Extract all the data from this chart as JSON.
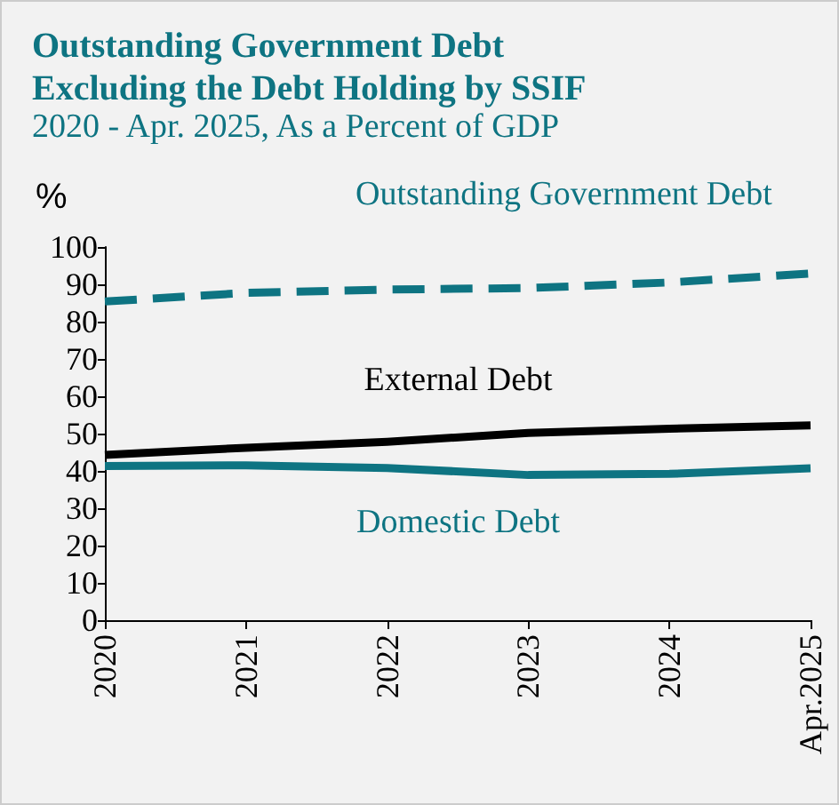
{
  "chart_data": {
    "type": "line",
    "title": "Outstanding Government Debt\nExcluding the Debt Holding by SSIF",
    "subtitle": "2020 - Apr. 2025, As a Percent of GDP",
    "ylabel": "%",
    "categories": [
      "2020",
      "2021",
      "2022",
      "2023",
      "2024",
      "Apr.2025"
    ],
    "series": [
      {
        "name": "Outstanding Government Debt",
        "color": "#0e7482",
        "line_style": "dashed",
        "values": [
          85.4,
          87.7,
          88.6,
          89,
          90.5,
          92.9
        ]
      },
      {
        "name": "External Debt",
        "color": "#000000",
        "values": [
          44.3,
          46.2,
          47.8,
          50.2,
          51.3,
          52.2
        ]
      },
      {
        "name": "Domestic Debt",
        "color": "#0e7482",
        "values": [
          41.3,
          41.5,
          40.8,
          38.9,
          39.2,
          40.7
        ]
      }
    ],
    "ylim": [
      0,
      100
    ],
    "yticks": [
      0,
      10,
      20,
      30,
      40,
      50,
      60,
      70,
      80,
      90,
      100
    ],
    "grid": false,
    "legend": false,
    "marker": "none",
    "line_style": "solid"
  }
}
